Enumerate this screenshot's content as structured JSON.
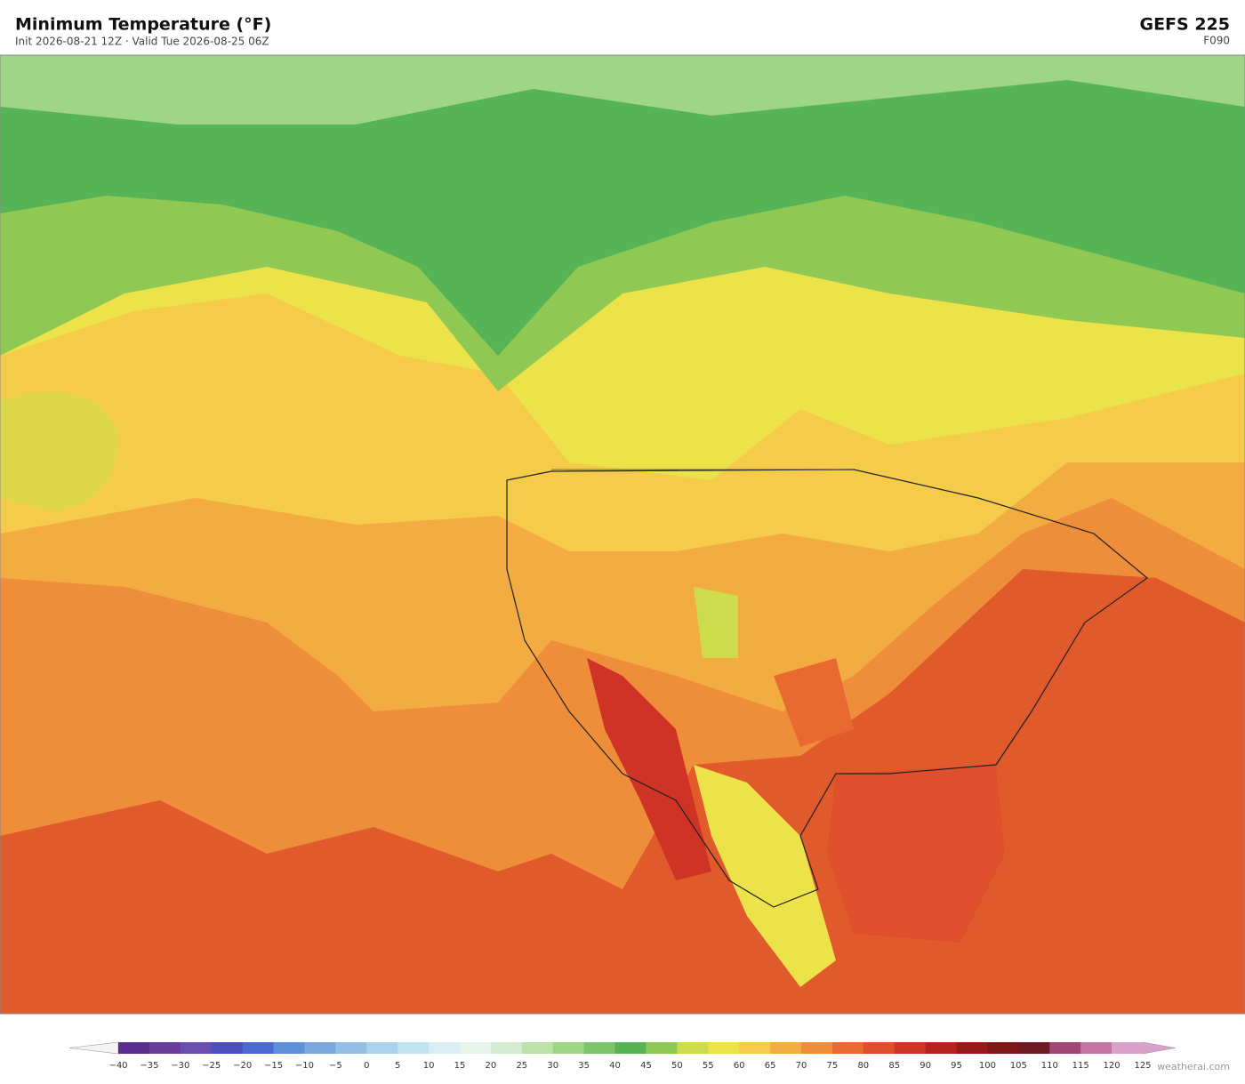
{
  "header": {
    "title": "Minimum Temperature  (°F)",
    "subtitle": "Init 2026-08-21 12Z  ·  Valid Tue 2026-08-25 06Z",
    "model": "GEFS  225",
    "forecast_hour": "F090"
  },
  "colorbar": {
    "under_color": "#f4f4f4",
    "over_color": "#d9a2cd",
    "colors": [
      "#5b2d8e",
      "#6a3d9a",
      "#6a4fb0",
      "#4a4fc0",
      "#4a6ad0",
      "#5f8fd8",
      "#7ba7dc",
      "#93bfe4",
      "#a9d3ec",
      "#c2e2f0",
      "#d8eef2",
      "#e6f4ea",
      "#d6ecd0",
      "#bde2a8",
      "#9fd587",
      "#7cc56b",
      "#56b356",
      "#8fc852",
      "#cddc4a",
      "#ece24a",
      "#f5cc4a",
      "#f3ac42",
      "#ee8d3a",
      "#e86a30",
      "#e04f2b",
      "#cf3325",
      "#b52220",
      "#961a1a",
      "#7e1718",
      "#6e1a23",
      "#a04676",
      "#c275a5",
      "#d9a2cd"
    ],
    "ticks": [
      "−40",
      "−35",
      "−30",
      "−25",
      "−20",
      "−15",
      "−10",
      "−5",
      "0",
      "5",
      "10",
      "15",
      "20",
      "25",
      "30",
      "35",
      "40",
      "45",
      "50",
      "55",
      "60",
      "65",
      "70",
      "75",
      "80",
      "85",
      "90",
      "95",
      "100",
      "105",
      "110",
      "115",
      "120",
      "125"
    ]
  },
  "credit": "weatherai.com"
}
